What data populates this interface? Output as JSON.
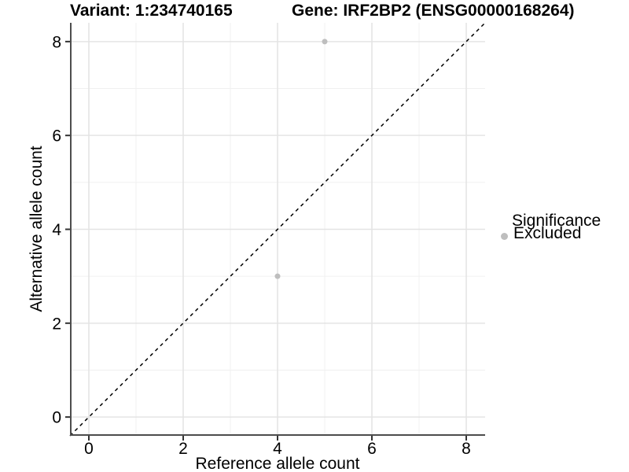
{
  "chart_data": {
    "type": "scatter",
    "title_left": "Variant: 1:234740165",
    "title_right": "Gene: IRF2BP2 (ENSG00000168264)",
    "xlabel": "Reference allele count",
    "ylabel": "Alternative allele count",
    "xlim": [
      -0.4,
      8.4
    ],
    "ylim": [
      -0.4,
      8.4
    ],
    "x_major_ticks": [
      0,
      2,
      4,
      6,
      8
    ],
    "y_major_ticks": [
      0,
      2,
      4,
      6,
      8
    ],
    "x_minor_ticks": [
      1,
      3,
      5,
      7
    ],
    "y_minor_ticks": [
      1,
      3,
      5,
      7
    ],
    "grid": "major+minor",
    "reference_line": {
      "type": "identity",
      "style": "dashed",
      "color": "#000000"
    },
    "series": [
      {
        "name": "Excluded",
        "color": "#bebebe",
        "points": [
          {
            "x": 5,
            "y": 8
          },
          {
            "x": 4,
            "y": 3
          }
        ]
      }
    ],
    "legend": {
      "position": "right",
      "title": "Significance",
      "items": [
        {
          "label": "Excluded",
          "color": "#bebebe"
        }
      ]
    }
  },
  "colors": {
    "background": "#ffffff",
    "text": "#000000",
    "axis_line": "#4d4d4d",
    "tick_mark": "#333333",
    "grid_major": "#e4e4e4",
    "grid_minor": "#f0f0f0",
    "point": "#bebebe",
    "dashed_line": "#000000"
  }
}
